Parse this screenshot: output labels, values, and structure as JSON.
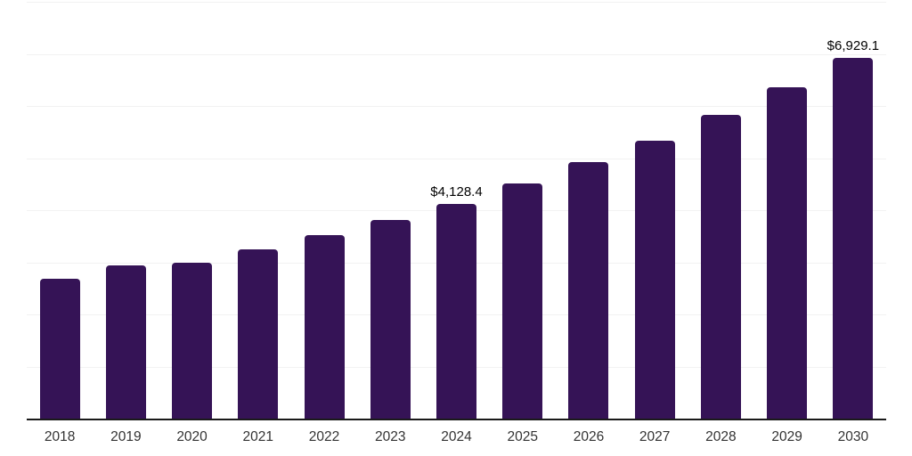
{
  "chart_data": {
    "type": "bar",
    "title": "",
    "xlabel": "",
    "ylabel": "",
    "categories": [
      "2018",
      "2019",
      "2020",
      "2021",
      "2022",
      "2023",
      "2024",
      "2025",
      "2026",
      "2027",
      "2028",
      "2029",
      "2030"
    ],
    "values": [
      2680,
      2935,
      2985,
      3255,
      3515,
      3820,
      4128.4,
      4510,
      4925,
      5335,
      5835,
      6355,
      6929.1
    ],
    "point_labels": {
      "2024": "$4,128.4",
      "2030": "$6,929.1"
    },
    "ylim": [
      0,
      8000
    ],
    "gridline_step": 1000,
    "grid_on": true,
    "y_axis_labels_visible": false,
    "legend": "none",
    "colors": {
      "bar": "#351356",
      "axis_line": "#1a1a1a",
      "gridline": "#f2f2f2",
      "tick_label": "#333333",
      "data_label": "#000000",
      "background": "#ffffff"
    }
  }
}
